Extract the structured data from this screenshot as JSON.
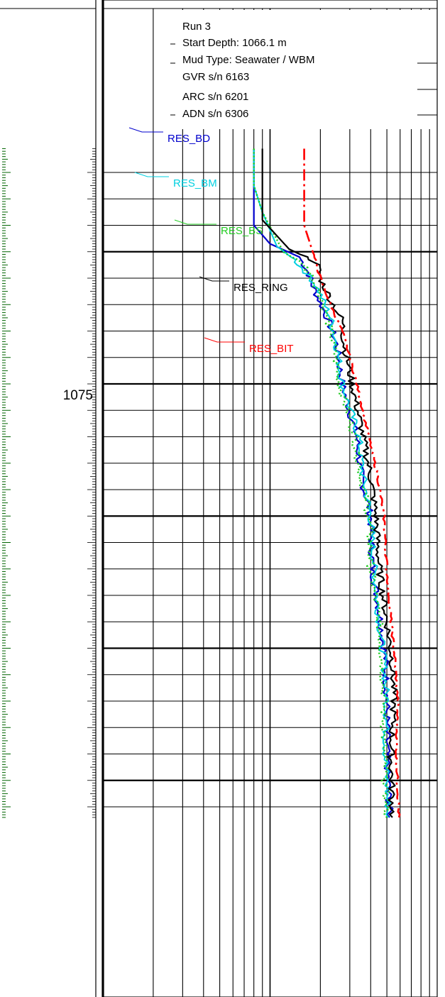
{
  "depth_track": {
    "depth_label": "1075",
    "depth_value": 1075
  },
  "header_box": {
    "lines": [
      "Run 3",
      "Start Depth: 1066.1 m",
      "Mud Type: Seawater / WBM",
      "GVR s/n 6163",
      "ARC s/n 6201",
      "ADN s/n 6306"
    ]
  },
  "colors": {
    "RES_BD": "#0000cc",
    "RES_BM": "#00d0e0",
    "RES_BS": "#22cc22",
    "RES_RING": "#000000",
    "RES_BIT": "#ff0000",
    "depth_ticks": "#006400",
    "grid": "#000000"
  },
  "chart_data": {
    "type": "line",
    "title": "",
    "xlabel": "",
    "ylabel": "",
    "x_scale": "log",
    "x_decades": 2,
    "y_scale": "depth",
    "ylim": [
      1066.1,
      1091.4
    ],
    "grid": true,
    "series": [
      {
        "name": "RES_BD",
        "x": [
          0.8,
          0.8,
          0.8,
          1.0,
          1.5,
          1.7,
          1.8,
          2.2,
          2.5,
          2.7,
          3.3,
          3.5,
          4.0,
          4.1,
          4.6,
          4.9,
          5.0,
          5.0,
          5.2
        ],
        "y": [
          1066.1,
          1067.5,
          1069.0,
          1069.7,
          1070.2,
          1070.8,
          1071.3,
          1072.5,
          1073.5,
          1075.0,
          1077.0,
          1078.5,
          1080.0,
          1082.0,
          1084.0,
          1085.5,
          1087.0,
          1089.0,
          1091.4
        ]
      },
      {
        "name": "RES_BM",
        "x": [
          0.8,
          0.8,
          0.9,
          1.1,
          1.4,
          1.7,
          1.9,
          2.3,
          2.5,
          2.7,
          3.4,
          3.6,
          4.0,
          4.2,
          4.5,
          4.8,
          5.0,
          4.9,
          5.1
        ],
        "y": [
          1066.1,
          1067.5,
          1068.5,
          1069.8,
          1070.3,
          1070.9,
          1071.3,
          1072.5,
          1073.5,
          1075.0,
          1077.0,
          1078.5,
          1080.0,
          1082.0,
          1084.0,
          1085.5,
          1087.0,
          1089.0,
          1091.4
        ]
      },
      {
        "name": "RES_BS",
        "x": [
          0.8,
          0.8,
          0.9,
          1.2,
          1.6,
          1.8,
          2.0,
          2.2,
          2.4,
          2.6,
          3.2,
          3.5,
          3.9,
          4.0,
          4.5,
          4.7,
          4.8,
          4.8,
          5.0
        ],
        "y": [
          1066.1,
          1067.5,
          1068.5,
          1070.0,
          1070.5,
          1071.0,
          1071.6,
          1072.5,
          1073.5,
          1075.0,
          1077.0,
          1078.5,
          1080.0,
          1082.0,
          1084.0,
          1085.5,
          1087.0,
          1089.0,
          1091.4
        ]
      },
      {
        "name": "RES_RING",
        "x": [
          0.9,
          0.9,
          0.9,
          1.3,
          1.9,
          2.0,
          2.3,
          2.7,
          2.8,
          3.1,
          3.6,
          4.0,
          4.3,
          4.5,
          5.0,
          5.4,
          5.5,
          5.3,
          5.4
        ],
        "y": [
          1066.1,
          1067.5,
          1068.8,
          1069.9,
          1070.4,
          1071.0,
          1071.8,
          1072.6,
          1073.6,
          1075.0,
          1077.0,
          1078.5,
          1080.0,
          1082.0,
          1084.0,
          1085.5,
          1087.0,
          1089.0,
          1091.4
        ]
      },
      {
        "name": "RES_BIT",
        "x": [
          1.6,
          1.6,
          1.6,
          1.6,
          1.8,
          2.0,
          2.3,
          2.7,
          3.0,
          3.3,
          3.9,
          4.4,
          4.8,
          5.0,
          5.3,
          5.6,
          5.8,
          5.7,
          5.9
        ],
        "y": [
          1066.1,
          1067.0,
          1068.0,
          1069.0,
          1070.0,
          1071.0,
          1072.0,
          1073.0,
          1074.0,
          1075.0,
          1077.0,
          1078.5,
          1080.0,
          1082.0,
          1084.0,
          1085.5,
          1087.0,
          1089.0,
          1091.4
        ]
      }
    ],
    "annotations": [
      "RES_BD",
      "RES_BM",
      "RES_BS",
      "RES_RING",
      "RES_BIT"
    ]
  }
}
